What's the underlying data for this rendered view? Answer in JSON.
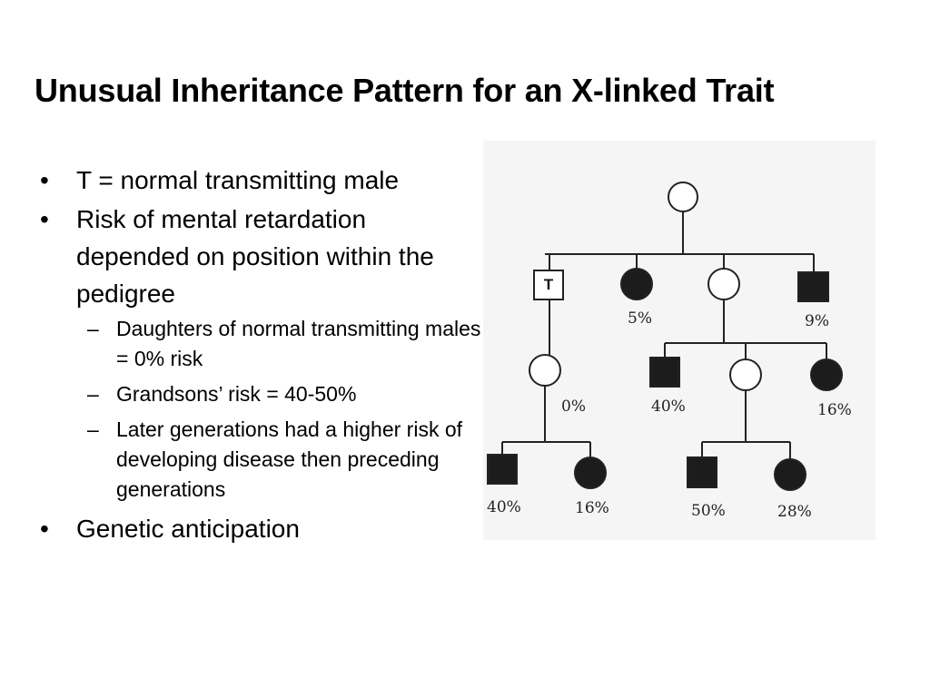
{
  "slide": {
    "title": "Unusual Inheritance Pattern for an X-linked Trait",
    "bullet_symbol": "•",
    "sub_symbol": "–",
    "bullets": [
      {
        "text": "T = normal transmitting male"
      },
      {
        "text": "Risk of mental retardation depended on position within the pedigree"
      },
      {
        "text": "Genetic anticipation"
      }
    ],
    "sub_bullets": [
      {
        "text": "Daughters of normal transmitting males = 0% risk"
      },
      {
        "text": "Grandsons’ risk = 40-50%"
      },
      {
        "text": "Later generations had a higher risk of developing disease then preceding generations"
      }
    ]
  },
  "pedigree": {
    "transmitting_male_label": "T",
    "line_color": "#222222",
    "affected_fill": "#1c1c1c",
    "unaffected_fill": "#ffffff",
    "risk_labels": {
      "gen2_affected_female": "5%",
      "gen2_affected_male": "9%",
      "gen3_daughter_of_T": "0%",
      "gen3_affected_male": "40%",
      "gen3_affected_female": "16%",
      "gen4_left_male": "40%",
      "gen4_left_female": "16%",
      "gen4_right_male": "50%",
      "gen4_right_female": "28%"
    }
  }
}
